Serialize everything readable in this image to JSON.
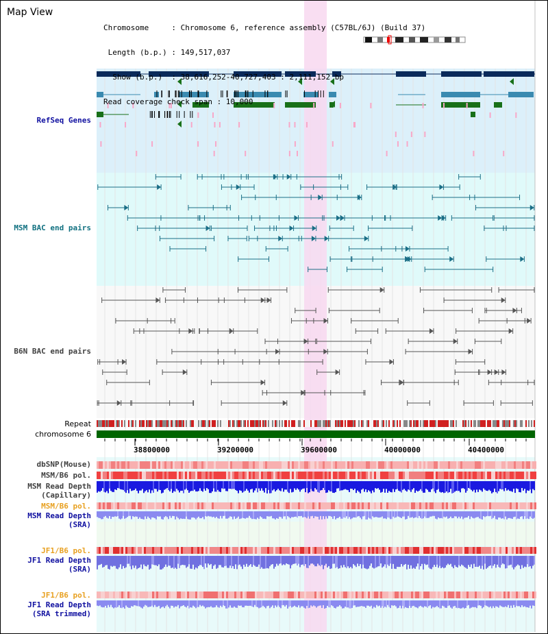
{
  "header": {
    "title": "Map View",
    "info_lines": [
      "Chromosome     : Chromosome 6, reference assembly (C57BL/6J) (Build 37)",
      " Length (b.p.) : 149,517,037",
      "  Show (b.p.)  : 38,616,252-40,727,403 : 2,111,152 bp",
      "Read coverage check span : 10,000"
    ]
  },
  "tracks": {
    "refseq": "RefSeq Genes",
    "msm_bac": "MSM BAC end pairs",
    "b6n_bac": "B6N BAC end pairs",
    "repeat": "Repeat",
    "chromosome": "chromosome 6",
    "dbsnp": "dbSNP(Mouse)",
    "msm_b6_pol_1": "MSM/B6 pol.",
    "msm_read_depth_cap_1": "MSM Read Depth",
    "msm_read_depth_cap_2": "(Capillary)",
    "msm_b6_pol_2": "MSM/B6 pol.",
    "msm_read_depth_sra_1": "MSM Read Depth",
    "msm_read_depth_sra_2": "(SRA)",
    "jf1_b6_pol_1": "JF1/B6 pol.",
    "jf1_read_depth_sra_1": "JF1 Read Depth",
    "jf1_read_depth_sra_2": "(SRA)",
    "jf1_b6_pol_2": "JF1/B6 pol.",
    "jf1_read_depth_trim_1": "JF1 Read Depth",
    "jf1_read_depth_trim_2": "(SRA trimmed)"
  },
  "axis": {
    "ticks": [
      "38800000",
      "39200000",
      "39600000",
      "40000000",
      "40400000"
    ]
  },
  "colors": {
    "refseq_bg": "#dcf0fa",
    "bac_bg": "#e0fafa",
    "b6n_bg": "#f8f8f8",
    "highlight": "#f8d8f0",
    "chromosome_bar": "#006400",
    "orange_label": "#e8a020",
    "blue_label": "#1010a0",
    "teal_label": "#107080",
    "dark_label": "#404040"
  }
}
